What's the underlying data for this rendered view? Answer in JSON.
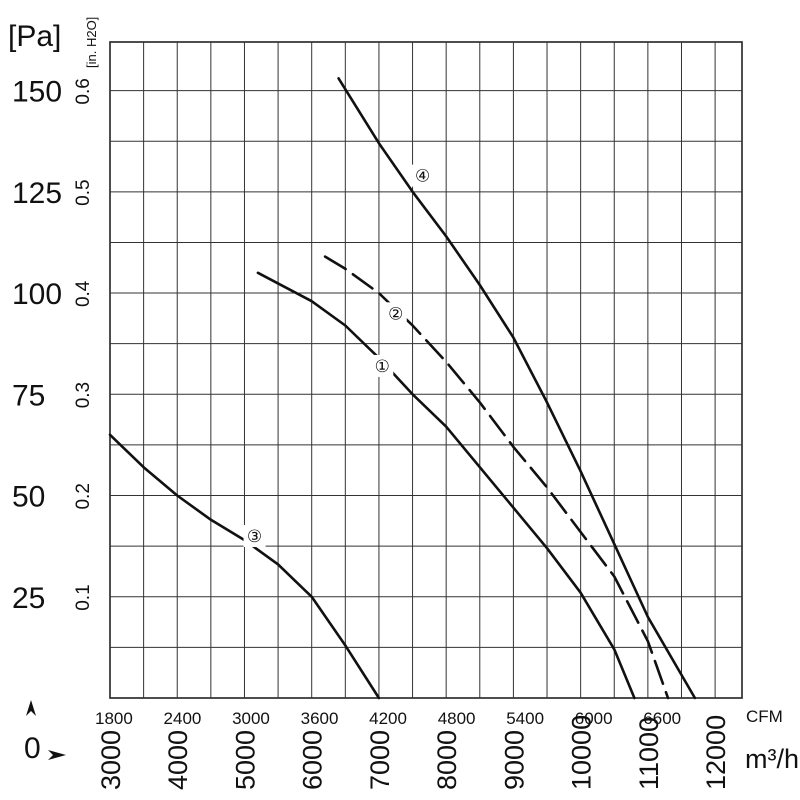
{
  "chart_data": {
    "type": "line",
    "y_unit_primary": "[Pa]",
    "y_unit_secondary": "[in. H2O]",
    "x_unit_primary": "m³/h",
    "x_unit_secondary": "CFM",
    "origin_label": "0",
    "pa_ticks": [
      "150",
      "125",
      "100",
      "75",
      "50",
      "25"
    ],
    "pa_tick_values": [
      150,
      125,
      100,
      75,
      50,
      25
    ],
    "inh2o_ticks": [
      "0.6",
      "0.5",
      "0.4",
      "0.3",
      "0.2",
      "0.1"
    ],
    "m3h_ticks": [
      "3000",
      "4000",
      "5000",
      "6000",
      "7000",
      "8000",
      "9000",
      "10000",
      "11000",
      "12000"
    ],
    "m3h_tick_values": [
      3000,
      4000,
      5000,
      6000,
      7000,
      8000,
      9000,
      10000,
      11000,
      12000
    ],
    "cfm_ticks": [
      "1800",
      "2400",
      "3000",
      "3600",
      "4200",
      "4800",
      "5400",
      "6000",
      "6600"
    ],
    "cfm_tick_values": [
      1800,
      2400,
      3000,
      3600,
      4200,
      4800,
      5400,
      6000,
      6600
    ],
    "xlim": [
      3000,
      12400
    ],
    "ylim": [
      0,
      162
    ],
    "grid": true,
    "series": [
      {
        "name": "①",
        "dashed": false,
        "x": [
          5200,
          6000,
          6500,
          7000,
          7500,
          8000,
          8500,
          9000,
          9500,
          10000,
          10500,
          10800
        ],
        "y": [
          105,
          98,
          92,
          84,
          75,
          67,
          57,
          47,
          37,
          26,
          12,
          0
        ]
      },
      {
        "name": "②",
        "dashed": true,
        "x": [
          6200,
          6500,
          7000,
          7500,
          8000,
          8500,
          9000,
          9500,
          10000,
          10500,
          11000,
          11300
        ],
        "y": [
          109,
          106,
          100,
          92,
          83,
          73,
          62,
          52,
          41,
          30,
          14,
          0
        ]
      },
      {
        "name": "③",
        "dashed": false,
        "x": [
          3000,
          3500,
          4000,
          4500,
          5000,
          5500,
          6000,
          6500,
          7000
        ],
        "y": [
          65,
          57,
          50,
          44,
          39,
          33,
          25,
          13,
          0
        ]
      },
      {
        "name": "④",
        "dashed": false,
        "x": [
          6400,
          7000,
          7500,
          8000,
          8500,
          9000,
          9500,
          10000,
          10500,
          11000,
          11700
        ],
        "y": [
          153,
          137,
          125,
          114,
          102,
          89,
          73,
          56,
          38,
          20,
          0
        ]
      }
    ],
    "series_labels": [
      {
        "text": "①",
        "x": 7050,
        "y": 82
      },
      {
        "text": "②",
        "x": 7250,
        "y": 95
      },
      {
        "text": "③",
        "x": 5150,
        "y": 40
      },
      {
        "text": "④",
        "x": 7650,
        "y": 129
      }
    ]
  }
}
